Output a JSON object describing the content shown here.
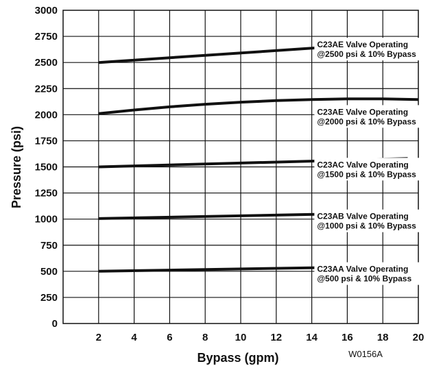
{
  "chart_data": {
    "type": "line",
    "title": "",
    "xlabel": "Bypass (gpm)",
    "ylabel": "Pressure (psi)",
    "xlim": [
      0,
      20
    ],
    "ylim": [
      0,
      3000
    ],
    "x_ticks": [
      "2",
      "4",
      "6",
      "8",
      "10",
      "12",
      "14",
      "16",
      "18",
      "20"
    ],
    "y_ticks": [
      "0",
      "250",
      "500",
      "750",
      "1000",
      "1250",
      "1500",
      "1750",
      "2000",
      "2250",
      "2500",
      "2750",
      "3000"
    ],
    "grid": true,
    "figure_id": "W0156A",
    "series": [
      {
        "name": "C23AE Valve Operating @2500 psi & 10% Bypass",
        "label_lines": [
          "C23AE Valve Operating",
          "@2500 psi & 10% Bypass"
        ],
        "points": [
          [
            2,
            2500
          ],
          [
            20,
            2705
          ]
        ]
      },
      {
        "name": "C23AE Valve Operating @2000 psi & 10% Bypass",
        "label_lines": [
          "C23AE Valve Operating",
          "@2000 psi & 10% Bypass"
        ],
        "points": [
          [
            2,
            2010
          ],
          [
            4,
            2045
          ],
          [
            6,
            2075
          ],
          [
            8,
            2100
          ],
          [
            10,
            2120
          ],
          [
            12,
            2135
          ],
          [
            14,
            2145
          ],
          [
            16,
            2152
          ],
          [
            18,
            2152
          ],
          [
            20,
            2145
          ]
        ]
      },
      {
        "name": "C23AC Valve Operating @1500 psi & 10% Bypass",
        "label_lines": [
          "C23AC Valve Operating",
          "@1500 psi & 10% Bypass"
        ],
        "points": [
          [
            2,
            1500
          ],
          [
            19.4,
            1580
          ]
        ]
      },
      {
        "name": "C23AB Valve Operating @1000 psi & 10% Bypass",
        "label_lines": [
          "C23AB Valve Operating",
          "@1000 psi & 10% Bypass"
        ],
        "points": [
          [
            2,
            1005
          ],
          [
            20,
            1065
          ]
        ]
      },
      {
        "name": "C23AA Valve Operating @500 psi & 10% Bypass",
        "label_lines": [
          "C23AA Valve Operating",
          "@500 psi & 10% Bypass"
        ],
        "points": [
          [
            2,
            500
          ],
          [
            20,
            550
          ]
        ]
      }
    ]
  }
}
